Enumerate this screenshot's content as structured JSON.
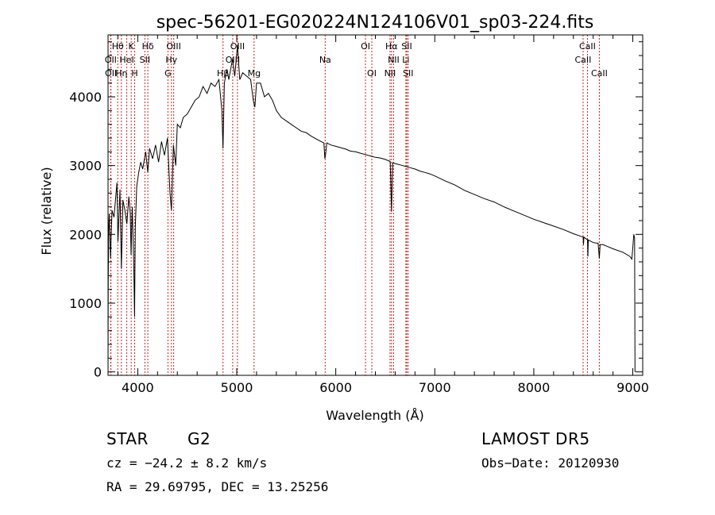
{
  "title": "spec-56201-EG020224N124106V01_sp03-224.fits",
  "info": {
    "class_label": "STAR",
    "subclass": "G2",
    "survey": "LAMOST DR5",
    "cz": "cz = −24.2 ± 8.2 km/s",
    "obs_date": "Obs−Date: 20120930",
    "coords": "RA =  29.69795, DEC =  13.25256"
  },
  "colors": {
    "spectrum": "#000000",
    "lines": "#cc2222",
    "axes": "#000000"
  },
  "chart_data": {
    "type": "line",
    "title": "spec-56201-EG020224N124106V01_sp03-224.fits",
    "xlabel": "Wavelength (Å)",
    "ylabel": "Flux (relative)",
    "xlim": [
      3700,
      9100
    ],
    "ylim": [
      -50,
      4900
    ],
    "xticks": [
      4000,
      5000,
      6000,
      7000,
      8000,
      9000
    ],
    "yticks": [
      0,
      1000,
      2000,
      3000,
      4000
    ],
    "grid": false,
    "series": [
      {
        "points": [
          [
            3700,
            0
          ],
          [
            3702,
            1200
          ],
          [
            3706,
            2000
          ],
          [
            3712,
            2300
          ],
          [
            3725,
            1650
          ],
          [
            3740,
            2350
          ],
          [
            3760,
            2250
          ],
          [
            3790,
            2750
          ],
          [
            3800,
            1900
          ],
          [
            3820,
            2650
          ],
          [
            3835,
            1500
          ],
          [
            3850,
            2500
          ],
          [
            3870,
            2350
          ],
          [
            3890,
            2150
          ],
          [
            3910,
            2550
          ],
          [
            3925,
            2300
          ],
          [
            3933,
            1700
          ],
          [
            3945,
            2400
          ],
          [
            3960,
            1550
          ],
          [
            3968,
            800
          ],
          [
            3975,
            2100
          ],
          [
            3990,
            2700
          ],
          [
            4010,
            2900
          ],
          [
            4030,
            3050
          ],
          [
            4050,
            2950
          ],
          [
            4080,
            3200
          ],
          [
            4101,
            2900
          ],
          [
            4120,
            3250
          ],
          [
            4150,
            3100
          ],
          [
            4180,
            3300
          ],
          [
            4210,
            3050
          ],
          [
            4240,
            3350
          ],
          [
            4270,
            3150
          ],
          [
            4300,
            3400
          ],
          [
            4326,
            2600
          ],
          [
            4340,
            2350
          ],
          [
            4360,
            3300
          ],
          [
            4384,
            3000
          ],
          [
            4400,
            3600
          ],
          [
            4430,
            3550
          ],
          [
            4460,
            3700
          ],
          [
            4500,
            3750
          ],
          [
            4540,
            3850
          ],
          [
            4580,
            3950
          ],
          [
            4620,
            4000
          ],
          [
            4660,
            4150
          ],
          [
            4700,
            4050
          ],
          [
            4740,
            4200
          ],
          [
            4780,
            4150
          ],
          [
            4820,
            4250
          ],
          [
            4850,
            3800
          ],
          [
            4861,
            3250
          ],
          [
            4875,
            4200
          ],
          [
            4900,
            4400
          ],
          [
            4920,
            4250
          ],
          [
            4957,
            4550
          ],
          [
            4980,
            4300
          ],
          [
            5007,
            4750
          ],
          [
            5030,
            4250
          ],
          [
            5060,
            4350
          ],
          [
            5100,
            4300
          ],
          [
            5140,
            4250
          ],
          [
            5167,
            3950
          ],
          [
            5183,
            3850
          ],
          [
            5200,
            4200
          ],
          [
            5240,
            4200
          ],
          [
            5280,
            4000
          ],
          [
            5320,
            4050
          ],
          [
            5360,
            3950
          ],
          [
            5400,
            3800
          ],
          [
            5450,
            3700
          ],
          [
            5500,
            3650
          ],
          [
            5550,
            3600
          ],
          [
            5600,
            3550
          ],
          [
            5650,
            3500
          ],
          [
            5700,
            3480
          ],
          [
            5750,
            3430
          ],
          [
            5800,
            3390
          ],
          [
            5850,
            3350
          ],
          [
            5880,
            3330
          ],
          [
            5890,
            3100
          ],
          [
            5896,
            3150
          ],
          [
            5910,
            3330
          ],
          [
            5950,
            3300
          ],
          [
            6000,
            3280
          ],
          [
            6050,
            3260
          ],
          [
            6100,
            3240
          ],
          [
            6150,
            3210
          ],
          [
            6200,
            3200
          ],
          [
            6250,
            3180
          ],
          [
            6300,
            3160
          ],
          [
            6350,
            3140
          ],
          [
            6400,
            3120
          ],
          [
            6450,
            3110
          ],
          [
            6500,
            3090
          ],
          [
            6550,
            3060
          ],
          [
            6563,
            2330
          ],
          [
            6575,
            3040
          ],
          [
            6600,
            3030
          ],
          [
            6650,
            3010
          ],
          [
            6700,
            2990
          ],
          [
            6750,
            2970
          ],
          [
            6800,
            2950
          ],
          [
            6850,
            2920
          ],
          [
            6900,
            2900
          ],
          [
            6950,
            2880
          ],
          [
            7000,
            2850
          ],
          [
            7100,
            2780
          ],
          [
            7200,
            2720
          ],
          [
            7300,
            2640
          ],
          [
            7400,
            2580
          ],
          [
            7500,
            2520
          ],
          [
            7600,
            2470
          ],
          [
            7700,
            2400
          ],
          [
            7800,
            2340
          ],
          [
            7900,
            2280
          ],
          [
            8000,
            2220
          ],
          [
            8100,
            2170
          ],
          [
            8200,
            2120
          ],
          [
            8300,
            2070
          ],
          [
            8400,
            2010
          ],
          [
            8498,
            1960
          ],
          [
            8502,
            1850
          ],
          [
            8506,
            1960
          ],
          [
            8542,
            1920
          ],
          [
            8546,
            1680
          ],
          [
            8550,
            1920
          ],
          [
            8600,
            1880
          ],
          [
            8650,
            1870
          ],
          [
            8662,
            1650
          ],
          [
            8670,
            1850
          ],
          [
            8700,
            1850
          ],
          [
            8800,
            1790
          ],
          [
            8900,
            1740
          ],
          [
            8970,
            1680
          ],
          [
            8990,
            1640
          ],
          [
            9000,
            1800
          ],
          [
            9010,
            2000
          ],
          [
            9018,
            1950
          ],
          [
            9022,
            0
          ]
        ]
      }
    ],
    "line_markers": [
      {
        "label": "Hθ",
        "wave": 3798,
        "row": 0
      },
      {
        "label": "K",
        "wave": 3934,
        "row": 0
      },
      {
        "label": "Hδ",
        "wave": 4102,
        "row": 0
      },
      {
        "label": "OIII",
        "wave": 4363,
        "row": 0
      },
      {
        "label": "OIII",
        "wave": 5007,
        "row": 0
      },
      {
        "label": "OI",
        "wave": 6300,
        "row": 0
      },
      {
        "label": "Hα",
        "wave": 6563,
        "row": 0
      },
      {
        "label": "SII",
        "wave": 6717,
        "row": 0
      },
      {
        "label": "CaII",
        "wave": 8542,
        "row": 0
      },
      {
        "label": "OII",
        "wave": 3727,
        "row": 1
      },
      {
        "label": "HeI",
        "wave": 3889,
        "row": 1
      },
      {
        "label": "SII",
        "wave": 4072,
        "row": 1
      },
      {
        "label": "Hγ",
        "wave": 4340,
        "row": 1
      },
      {
        "label": "OIII",
        "wave": 4959,
        "row": 1
      },
      {
        "label": "Na",
        "wave": 5893,
        "row": 1
      },
      {
        "label": "NII",
        "wave": 6584,
        "row": 1
      },
      {
        "label": "Li",
        "wave": 6708,
        "row": 1
      },
      {
        "label": "CaII",
        "wave": 8498,
        "row": 1
      },
      {
        "label": "OII",
        "wave": 3729,
        "row": 2
      },
      {
        "label": "Hη",
        "wave": 3835,
        "row": 2
      },
      {
        "label": "H",
        "wave": 3969,
        "row": 2
      },
      {
        "label": "G",
        "wave": 4305,
        "row": 2
      },
      {
        "label": "Hβ",
        "wave": 4861,
        "row": 2
      },
      {
        "label": "Mg",
        "wave": 5175,
        "row": 2
      },
      {
        "label": "OI",
        "wave": 6364,
        "row": 2
      },
      {
        "label": "NII",
        "wave": 6548,
        "row": 2
      },
      {
        "label": "SII",
        "wave": 6731,
        "row": 2
      },
      {
        "label": "CaII",
        "wave": 8662,
        "row": 2
      }
    ]
  }
}
